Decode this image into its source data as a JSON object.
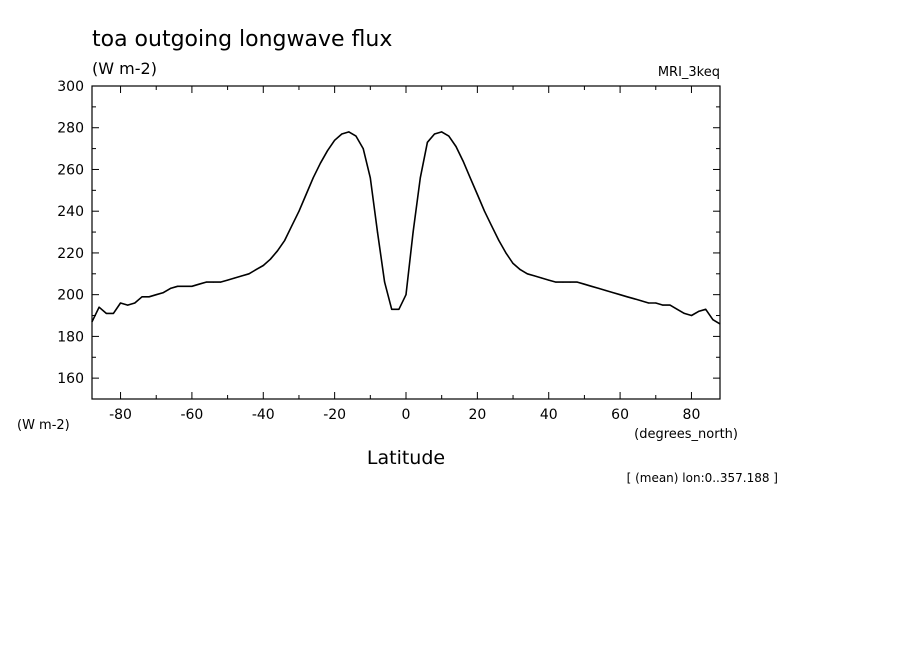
{
  "chart_data": {
    "type": "line",
    "title": "toa outgoing longwave flux",
    "units_label": "(W m-2)",
    "model_label": "MRI_3keq",
    "ylabel": "(W m-2)",
    "xlabel": "Latitude",
    "x_units_label": "(degrees_north)",
    "footnote": "[ (mean) lon:0..357.188 ]",
    "xlim": [
      -88,
      88
    ],
    "ylim": [
      150,
      300
    ],
    "x_ticks": [
      -80,
      -60,
      -40,
      -20,
      0,
      20,
      40,
      60,
      80
    ],
    "x_tick_labels": [
      "-80",
      "-60",
      "-40",
      "-20",
      "0",
      "20",
      "40",
      "60",
      "80"
    ],
    "y_ticks": [
      160,
      180,
      200,
      220,
      240,
      260,
      280,
      300
    ],
    "y_tick_labels": [
      "160",
      "180",
      "200",
      "220",
      "240",
      "260",
      "280",
      "300"
    ],
    "grid": false,
    "series": [
      {
        "x": [
          -88,
          -86,
          -84,
          -82,
          -80,
          -78,
          -76,
          -74,
          -72,
          -70,
          -68,
          -66,
          -64,
          -62,
          -60,
          -58,
          -56,
          -54,
          -52,
          -50,
          -48,
          -46,
          -44,
          -42,
          -40,
          -38,
          -36,
          -34,
          -32,
          -30,
          -28,
          -26,
          -24,
          -22,
          -20,
          -18,
          -16,
          -14,
          -12,
          -10,
          -8,
          -6,
          -4,
          -2,
          0,
          2,
          4,
          6,
          8,
          10,
          12,
          14,
          16,
          18,
          20,
          22,
          24,
          26,
          28,
          30,
          32,
          34,
          36,
          38,
          40,
          42,
          44,
          46,
          48,
          50,
          52,
          54,
          56,
          58,
          60,
          62,
          64,
          66,
          68,
          70,
          72,
          74,
          76,
          78,
          80,
          82,
          84,
          86,
          88
        ],
        "values": [
          187,
          194,
          191,
          191,
          196,
          195,
          196,
          199,
          199,
          200,
          201,
          203,
          204,
          204,
          204,
          205,
          206,
          206,
          206,
          207,
          208,
          209,
          210,
          212,
          214,
          217,
          221,
          226,
          233,
          240,
          248,
          256,
          263,
          269,
          274,
          277,
          278,
          276,
          270,
          256,
          230,
          206,
          193,
          193,
          200,
          230,
          256,
          273,
          277,
          278,
          276,
          271,
          264,
          256,
          248,
          240,
          233,
          226,
          220,
          215,
          212,
          210,
          209,
          208,
          207,
          206,
          206,
          206,
          206,
          205,
          204,
          203,
          202,
          201,
          200,
          199,
          198,
          197,
          196,
          196,
          195,
          195,
          193,
          191,
          190,
          192,
          193,
          188,
          186
        ]
      }
    ]
  }
}
